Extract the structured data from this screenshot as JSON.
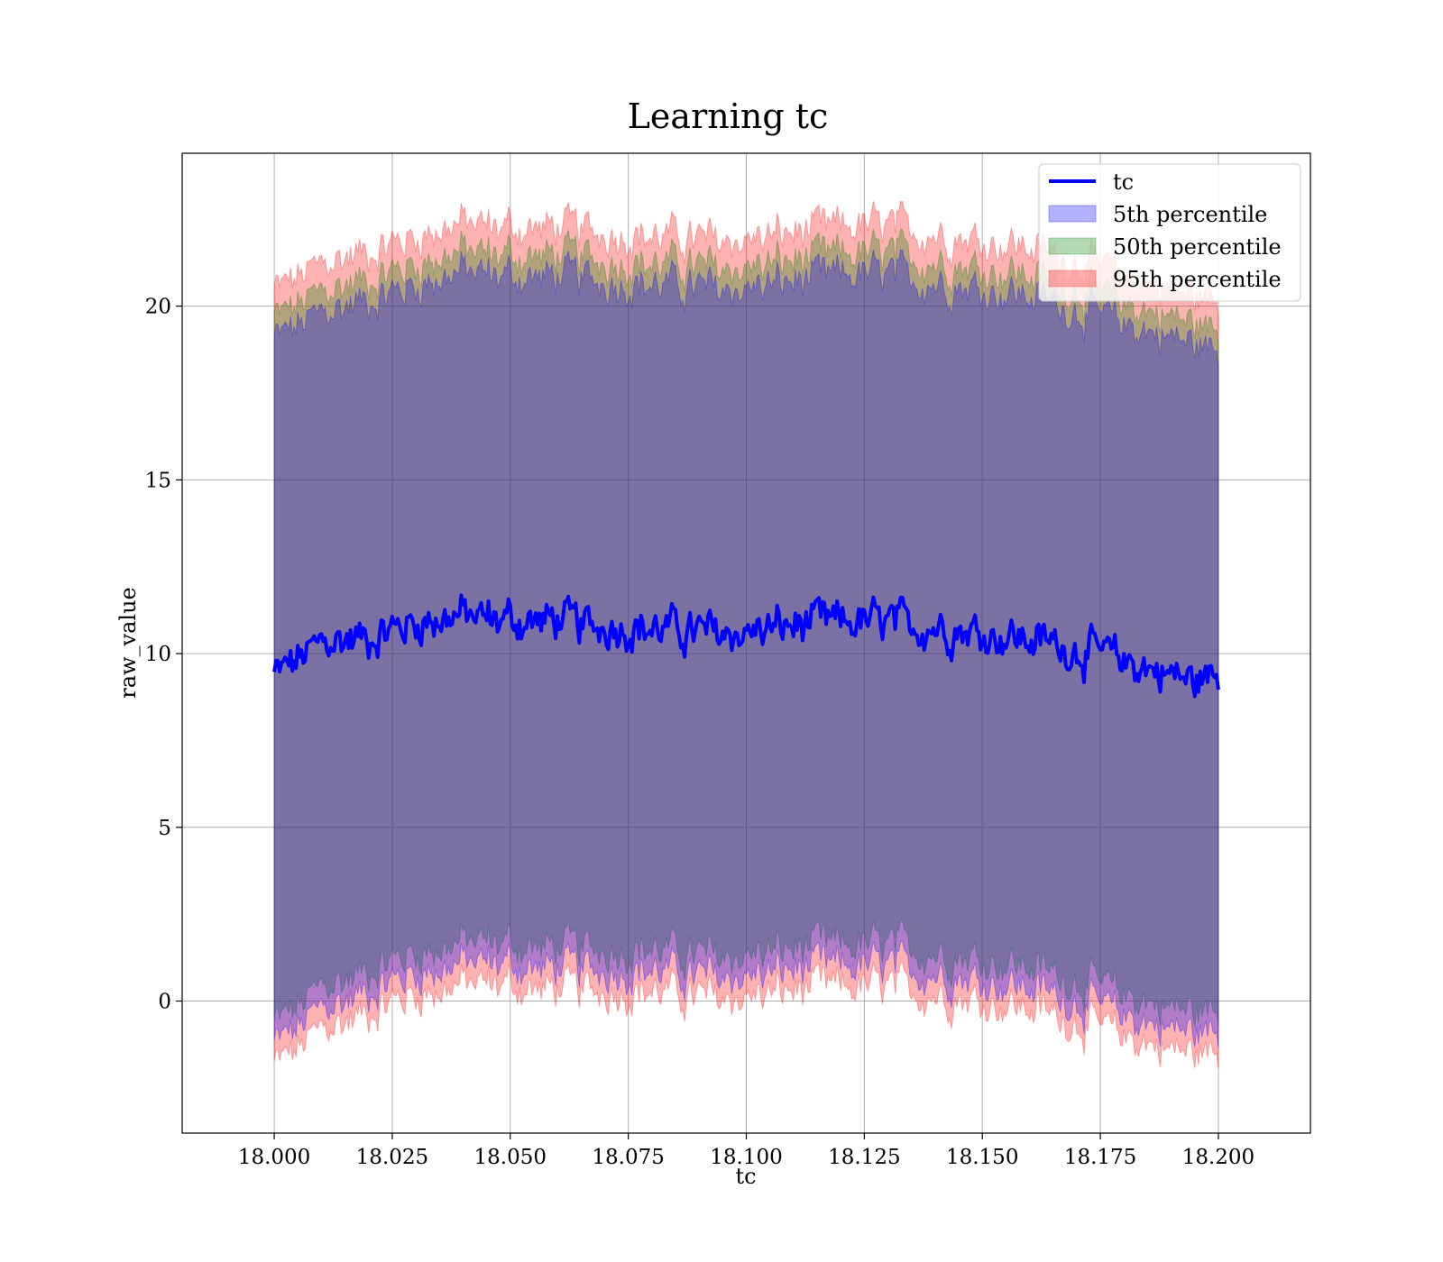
{
  "chart_data": {
    "type": "area",
    "title": "Learning tc",
    "xlabel": "tc",
    "ylabel": "raw_value",
    "xlim": [
      17.9805,
      18.2195
    ],
    "ylim": [
      -3.8,
      24.4
    ],
    "x_range": [
      18.0,
      18.2
    ],
    "xticks": [
      18.0,
      18.025,
      18.05,
      18.075,
      18.1,
      18.125,
      18.15,
      18.175,
      18.2
    ],
    "xtick_labels": [
      "18.000",
      "18.025",
      "18.050",
      "18.075",
      "18.100",
      "18.125",
      "18.150",
      "18.175",
      "18.200"
    ],
    "yticks": [
      0,
      5,
      10,
      15,
      20
    ],
    "ytick_labels": [
      "0",
      "5",
      "10",
      "15",
      "20"
    ],
    "grid": true,
    "legend_position": "top-right",
    "series": [
      {
        "name": "tc",
        "kind": "line",
        "color": "#0000ff",
        "x": [
          18.0,
          18.005,
          18.01,
          18.015,
          18.02,
          18.025,
          18.03,
          18.035,
          18.04,
          18.045,
          18.05,
          18.055,
          18.06,
          18.065,
          18.07,
          18.075,
          18.08,
          18.085,
          18.09,
          18.095,
          18.1,
          18.105,
          18.11,
          18.115,
          18.12,
          18.125,
          18.13,
          18.135,
          18.14,
          18.145,
          18.15,
          18.155,
          18.16,
          18.165,
          18.17,
          18.175,
          18.18,
          18.185,
          18.19,
          18.195,
          18.2
        ],
        "y": [
          9.4,
          9.8,
          10.3,
          10.4,
          10.5,
          10.7,
          10.9,
          11.0,
          11.1,
          11.0,
          11.0,
          10.9,
          11.0,
          10.8,
          10.8,
          10.8,
          10.7,
          10.7,
          10.6,
          10.6,
          10.6,
          10.7,
          10.8,
          10.9,
          10.9,
          10.9,
          10.9,
          10.8,
          10.8,
          10.7,
          10.6,
          10.5,
          10.4,
          10.3,
          10.1,
          10.0,
          9.8,
          9.6,
          9.4,
          9.2,
          9.4
        ]
      },
      {
        "name": "5th percentile",
        "kind": "band",
        "color": "#0000ff",
        "opacity": 0.3,
        "lower": [
          -1.2,
          -0.8,
          -0.2,
          0.0,
          0.3,
          0.6,
          0.8,
          0.9,
          1.1,
          1.1,
          1.1,
          0.9,
          1.0,
          0.9,
          0.9,
          0.9,
          0.9,
          0.8,
          0.7,
          0.7,
          0.7,
          0.8,
          0.9,
          1.0,
          1.0,
          1.0,
          1.0,
          0.9,
          0.8,
          0.7,
          0.6,
          0.5,
          0.4,
          0.2,
          0.0,
          -0.2,
          -0.4,
          -0.6,
          -0.8,
          -0.9,
          -0.9
        ],
        "upper": [
          19.1,
          19.4,
          19.8,
          20.0,
          20.2,
          20.4,
          20.6,
          20.8,
          21.0,
          20.9,
          20.9,
          20.8,
          20.9,
          20.8,
          20.7,
          20.7,
          20.6,
          20.6,
          20.5,
          20.5,
          20.5,
          20.6,
          20.7,
          20.8,
          20.9,
          20.9,
          20.9,
          20.8,
          20.7,
          20.6,
          20.5,
          20.4,
          20.3,
          20.1,
          19.9,
          19.7,
          19.5,
          19.3,
          19.1,
          18.9,
          18.7
        ]
      },
      {
        "name": "50th percentile",
        "kind": "band",
        "color": "#008000",
        "opacity": 0.3,
        "lower": [
          -0.6,
          -0.2,
          0.4,
          0.6,
          0.9,
          1.2,
          1.4,
          1.5,
          1.7,
          1.7,
          1.7,
          1.5,
          1.6,
          1.5,
          1.5,
          1.5,
          1.5,
          1.4,
          1.3,
          1.3,
          1.3,
          1.4,
          1.5,
          1.6,
          1.6,
          1.6,
          1.6,
          1.5,
          1.4,
          1.3,
          1.2,
          1.1,
          1.0,
          0.8,
          0.6,
          0.4,
          0.2,
          0.0,
          -0.2,
          -0.3,
          -0.3
        ],
        "upper": [
          19.7,
          20.0,
          20.4,
          20.6,
          20.8,
          21.0,
          21.2,
          21.4,
          21.6,
          21.5,
          21.5,
          21.4,
          21.5,
          21.4,
          21.3,
          21.3,
          21.2,
          21.2,
          21.1,
          21.1,
          21.1,
          21.2,
          21.3,
          21.4,
          21.5,
          21.5,
          21.5,
          21.4,
          21.3,
          21.2,
          21.1,
          21.0,
          20.9,
          20.7,
          20.5,
          20.3,
          20.1,
          19.9,
          19.7,
          19.5,
          19.3
        ]
      },
      {
        "name": "95th percentile",
        "kind": "band",
        "color": "#ff0000",
        "opacity": 0.3,
        "lower": [
          -1.8,
          -1.4,
          -0.8,
          -0.6,
          -0.3,
          0.0,
          0.2,
          0.3,
          0.5,
          0.5,
          0.5,
          0.3,
          0.4,
          0.3,
          0.3,
          0.3,
          0.3,
          0.2,
          0.1,
          0.1,
          0.1,
          0.2,
          0.3,
          0.4,
          0.4,
          0.4,
          0.4,
          0.3,
          0.2,
          0.1,
          0.0,
          -0.1,
          -0.2,
          -0.4,
          -0.6,
          -0.8,
          -1.0,
          -1.2,
          -1.4,
          -1.5,
          -1.5
        ],
        "upper": [
          20.5,
          20.8,
          21.2,
          21.4,
          21.6,
          21.8,
          22.0,
          22.2,
          22.4,
          22.3,
          22.3,
          22.2,
          22.3,
          22.2,
          22.1,
          22.1,
          22.0,
          22.0,
          21.9,
          21.9,
          21.9,
          22.0,
          22.1,
          22.2,
          22.3,
          22.3,
          22.3,
          22.2,
          22.1,
          22.0,
          21.9,
          21.8,
          21.7,
          21.5,
          21.3,
          21.1,
          20.9,
          20.7,
          20.5,
          20.3,
          20.1
        ]
      }
    ]
  }
}
